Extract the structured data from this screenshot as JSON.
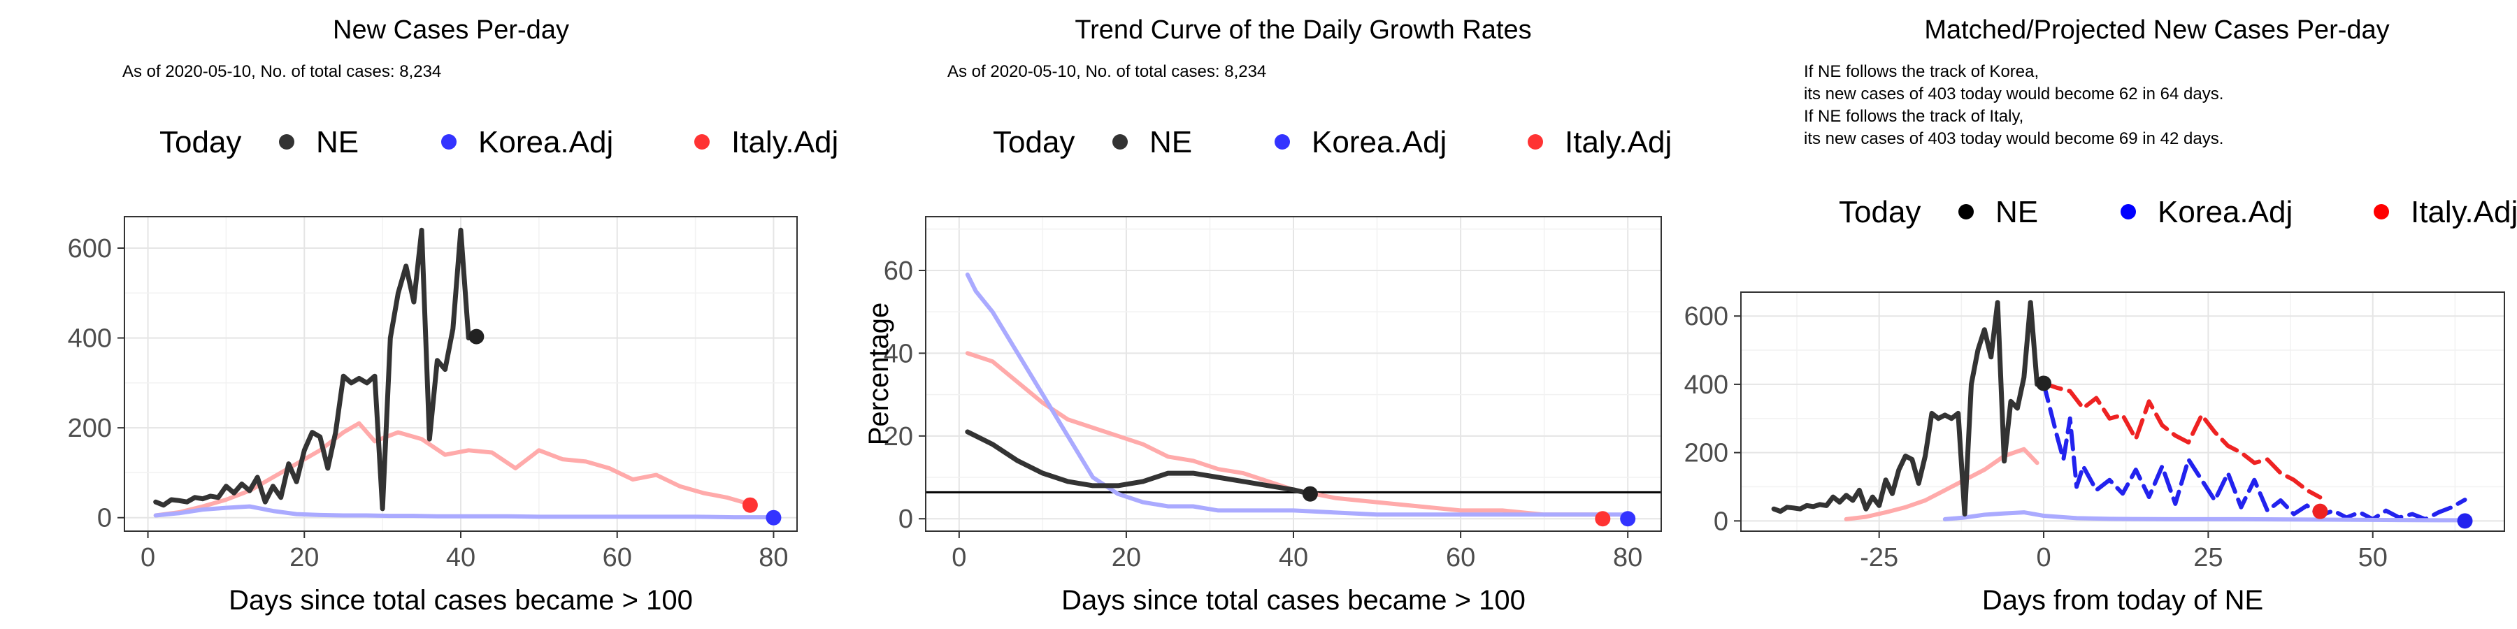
{
  "chart_data": [
    {
      "type": "line",
      "title": "New Cases Per-day",
      "subtitle": "As of 2020-05-10, No. of total cases: 8,234",
      "notes": [],
      "xlabel": "Days since total cases became > 100",
      "ylabel": "",
      "xlim": [
        -3,
        83
      ],
      "ylim": [
        -30,
        670
      ],
      "xticks": [
        0,
        20,
        40,
        60,
        80
      ],
      "yticks": [
        0,
        200,
        400,
        600
      ],
      "grid": true,
      "legend": {
        "position": "top",
        "title": "Today",
        "entries": [
          "NE",
          "Korea.Adj",
          "Italy.Adj"
        ],
        "colors": [
          "#333333",
          "#3333ff",
          "#ff3333"
        ]
      },
      "series": [
        {
          "name": "NE",
          "color": "#333333",
          "style": "solid",
          "x": [
            1,
            2,
            3,
            4,
            5,
            6,
            7,
            8,
            9,
            10,
            11,
            12,
            13,
            14,
            15,
            16,
            17,
            18,
            19,
            20,
            21,
            22,
            23,
            24,
            25,
            26,
            27,
            28,
            29,
            30,
            31,
            32,
            33,
            34,
            35,
            36,
            37,
            38,
            39,
            40,
            41,
            42
          ],
          "y": [
            35,
            28,
            40,
            38,
            35,
            45,
            42,
            48,
            45,
            70,
            55,
            75,
            60,
            90,
            35,
            70,
            45,
            120,
            80,
            150,
            190,
            180,
            110,
            190,
            315,
            300,
            310,
            300,
            315,
            20,
            400,
            500,
            560,
            480,
            640,
            175,
            350,
            330,
            420,
            640,
            400,
            403
          ]
        },
        {
          "name": "Korea.Adj",
          "color": "#aaaaff",
          "style": "solid",
          "x": [
            1,
            4,
            7,
            10,
            13,
            16,
            19,
            22,
            25,
            28,
            31,
            34,
            37,
            40,
            43,
            46,
            50,
            55,
            60,
            65,
            70,
            75,
            80
          ],
          "y": [
            5,
            10,
            18,
            22,
            25,
            15,
            8,
            6,
            5,
            5,
            4,
            4,
            3,
            3,
            3,
            3,
            2,
            2,
            2,
            2,
            2,
            1,
            1
          ]
        },
        {
          "name": "Italy.Adj",
          "color": "#ffaaaa",
          "style": "solid",
          "x": [
            1,
            4,
            7,
            10,
            13,
            16,
            19,
            22,
            25,
            27,
            29,
            32,
            35,
            38,
            41,
            44,
            47,
            50,
            53,
            56,
            59,
            62,
            65,
            68,
            71,
            74,
            77
          ],
          "y": [
            5,
            12,
            25,
            40,
            60,
            90,
            120,
            150,
            190,
            210,
            170,
            190,
            175,
            140,
            150,
            145,
            110,
            150,
            130,
            125,
            110,
            85,
            95,
            70,
            55,
            45,
            30
          ]
        }
      ],
      "today_points": [
        {
          "name": "NE",
          "x": 42,
          "y": 403,
          "color": "#222222"
        },
        {
          "name": "Korea.Adj",
          "x": 80,
          "y": 0,
          "color": "#3333ff"
        },
        {
          "name": "Italy.Adj",
          "x": 77,
          "y": 28,
          "color": "#ff3333"
        }
      ]
    },
    {
      "type": "line",
      "title": "Trend Curve of the Daily Growth Rates",
      "subtitle": "As of 2020-05-10, No. of total cases: 8,234",
      "notes": [],
      "xlabel": "Days since total cases became > 100",
      "ylabel": "Percentage",
      "xlim": [
        -4,
        84
      ],
      "ylim": [
        -3,
        73
      ],
      "xticks": [
        0,
        20,
        40,
        60,
        80
      ],
      "yticks": [
        0,
        20,
        40,
        60
      ],
      "grid": true,
      "reference_line_y": 6.4,
      "legend": {
        "position": "top",
        "title": "Today",
        "entries": [
          "NE",
          "Korea.Adj",
          "Italy.Adj"
        ],
        "colors": [
          "#333333",
          "#3333ff",
          "#ff3333"
        ]
      },
      "series": [
        {
          "name": "NE",
          "color": "#333333",
          "style": "solid",
          "x": [
            1,
            4,
            7,
            10,
            13,
            16,
            19,
            22,
            25,
            28,
            31,
            34,
            37,
            40,
            42
          ],
          "y": [
            21,
            18,
            14,
            11,
            9,
            8,
            8,
            9,
            11,
            11,
            10,
            9,
            8,
            7,
            6
          ]
        },
        {
          "name": "Korea.Adj",
          "color": "#aaaaff",
          "style": "solid",
          "x": [
            1,
            2,
            4,
            7,
            10,
            13,
            16,
            19,
            22,
            25,
            28,
            31,
            35,
            40,
            50,
            60,
            70,
            80
          ],
          "y": [
            59,
            55,
            50,
            40,
            30,
            20,
            10,
            6,
            4,
            3,
            3,
            2,
            2,
            2,
            1,
            1,
            1,
            1
          ]
        },
        {
          "name": "Italy.Adj",
          "color": "#ffaaaa",
          "style": "solid",
          "x": [
            1,
            4,
            7,
            10,
            13,
            16,
            19,
            22,
            25,
            28,
            31,
            34,
            37,
            40,
            45,
            50,
            55,
            60,
            65,
            70,
            77
          ],
          "y": [
            40,
            38,
            33,
            28,
            24,
            22,
            20,
            18,
            15,
            14,
            12,
            11,
            9,
            7,
            5,
            4,
            3,
            2,
            2,
            1,
            1
          ]
        }
      ],
      "today_points": [
        {
          "name": "NE",
          "x": 42,
          "y": 6,
          "color": "#222222"
        },
        {
          "name": "Korea.Adj",
          "x": 80,
          "y": 0,
          "color": "#3333ff"
        },
        {
          "name": "Italy.Adj",
          "x": 77,
          "y": 0,
          "color": "#ff3333"
        }
      ]
    },
    {
      "type": "line",
      "title": "Matched/Projected New Cases Per-day",
      "subtitle": "",
      "notes": [
        "If NE follows the track of Korea,",
        "its new cases of 403 today would become 62 in 64 days.",
        "If NE follows the track of Italy,",
        "its new cases of 403 today would become 69 in 42 days."
      ],
      "xlabel": "Days from today of NE",
      "ylabel": "",
      "xlim": [
        -46,
        70
      ],
      "ylim": [
        -30,
        670
      ],
      "xticks": [
        -25,
        0,
        25,
        50
      ],
      "yticks": [
        0,
        200,
        400,
        600
      ],
      "grid": true,
      "legend": {
        "position": "top",
        "title": "Today",
        "entries": [
          "NE",
          "Korea.Adj",
          "Italy.Adj"
        ],
        "colors": [
          "#000000",
          "#0000ff",
          "#ff0000"
        ]
      },
      "series": [
        {
          "name": "NE",
          "color": "#333333",
          "style": "solid",
          "x": [
            -41,
            -40,
            -39,
            -38,
            -37,
            -36,
            -35,
            -34,
            -33,
            -32,
            -31,
            -30,
            -29,
            -28,
            -27,
            -26,
            -25,
            -24,
            -23,
            -22,
            -21,
            -20,
            -19,
            -18,
            -17,
            -16,
            -15,
            -14,
            -13,
            -12,
            -11,
            -10,
            -9,
            -8,
            -7,
            -6,
            -5,
            -4,
            -3,
            -2,
            -1,
            0
          ],
          "y": [
            35,
            28,
            40,
            38,
            35,
            45,
            42,
            48,
            45,
            70,
            55,
            75,
            60,
            90,
            35,
            70,
            45,
            120,
            80,
            150,
            190,
            180,
            110,
            190,
            315,
            300,
            310,
            300,
            315,
            20,
            400,
            500,
            560,
            480,
            640,
            175,
            350,
            330,
            420,
            640,
            400,
            403
          ]
        },
        {
          "name": "Korea.Adj (matched)",
          "color": "#aaaaff",
          "style": "solid",
          "x": [
            -15,
            -12,
            -9,
            -6,
            -3,
            0,
            5,
            10,
            20,
            30,
            40,
            50,
            60,
            64
          ],
          "y": [
            5,
            10,
            18,
            22,
            25,
            15,
            8,
            6,
            5,
            5,
            4,
            3,
            2,
            2
          ]
        },
        {
          "name": "Italy.Adj (matched)",
          "color": "#ffaaaa",
          "style": "solid",
          "x": [
            -30,
            -27,
            -24,
            -21,
            -18,
            -15,
            -12,
            -9,
            -6,
            -3,
            -1
          ],
          "y": [
            5,
            12,
            25,
            40,
            60,
            90,
            120,
            150,
            190,
            210,
            170
          ]
        },
        {
          "name": "Korea.Adj (projected)",
          "color": "#2222ee",
          "style": "dashed",
          "x": [
            0,
            2,
            3,
            4,
            5,
            6,
            8,
            10,
            12,
            14,
            16,
            18,
            20,
            22,
            24,
            26,
            28,
            30,
            32,
            34,
            36,
            38,
            40,
            42,
            44,
            46,
            48,
            50,
            52,
            54,
            56,
            58,
            60,
            62,
            64
          ],
          "y": [
            403,
            250,
            180,
            300,
            100,
            160,
            90,
            120,
            80,
            150,
            70,
            160,
            50,
            180,
            120,
            60,
            140,
            40,
            120,
            30,
            60,
            20,
            45,
            15,
            30,
            10,
            25,
            5,
            30,
            10,
            20,
            5,
            25,
            40,
            62
          ]
        },
        {
          "name": "Italy.Adj (projected)",
          "color": "#ee2222",
          "style": "dashed",
          "x": [
            0,
            2,
            4,
            6,
            8,
            10,
            12,
            14,
            16,
            18,
            20,
            22,
            24,
            26,
            28,
            30,
            32,
            34,
            36,
            38,
            40,
            42
          ],
          "y": [
            403,
            390,
            380,
            330,
            360,
            300,
            310,
            240,
            350,
            280,
            250,
            230,
            310,
            260,
            220,
            200,
            170,
            180,
            140,
            120,
            90,
            69
          ]
        }
      ],
      "today_points": [
        {
          "name": "NE",
          "x": 0,
          "y": 403,
          "color": "#222222"
        },
        {
          "name": "Korea.Adj",
          "x": 64,
          "y": 0,
          "color": "#2222ee"
        },
        {
          "name": "Italy.Adj",
          "x": 42,
          "y": 28,
          "color": "#ee2222"
        }
      ]
    }
  ]
}
